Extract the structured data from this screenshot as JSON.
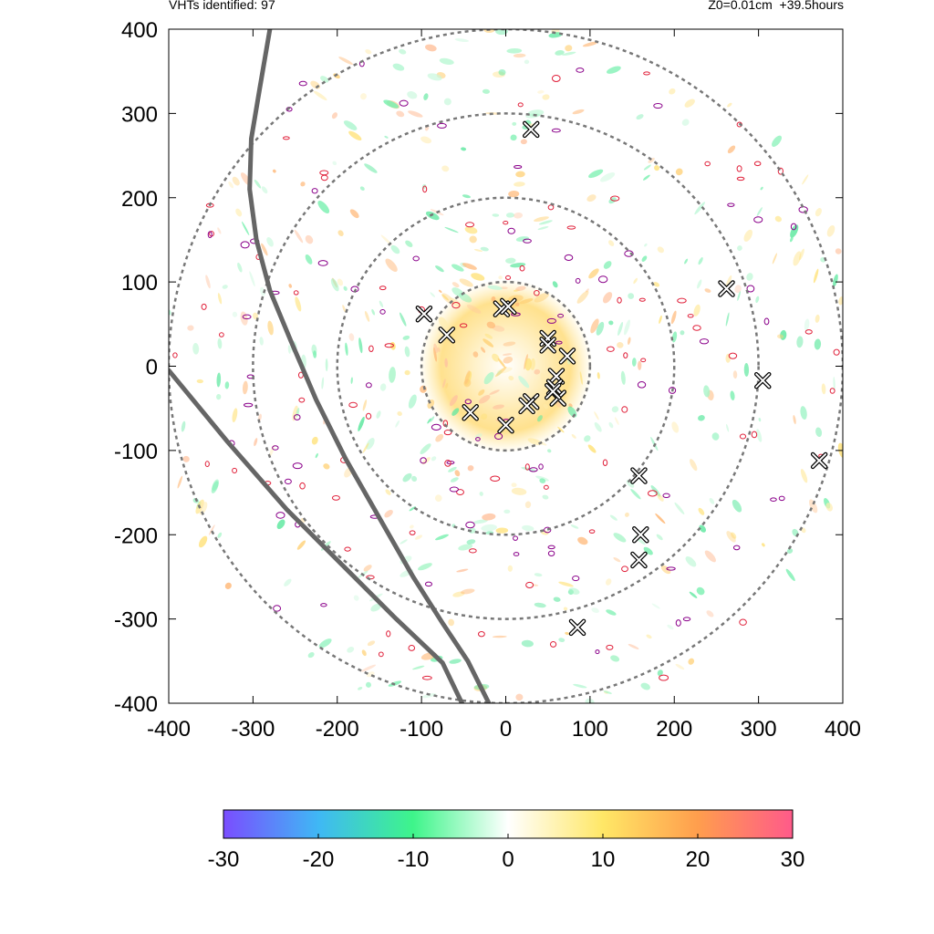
{
  "header": {
    "left_text": "VHTs identified: 97",
    "right_text": "Z0=0.01cm  +39.5hours"
  },
  "chart_data": {
    "type": "scatter",
    "title": "",
    "xlabel": "",
    "ylabel": "",
    "xlim": [
      -400,
      400
    ],
    "ylim": [
      -400,
      400
    ],
    "x_ticks": [
      "-400",
      "-300",
      "-200",
      "-100",
      "0",
      "100",
      "200",
      "300",
      "400"
    ],
    "y_ticks": [
      "400",
      "300",
      "200",
      "100",
      "0",
      "-100",
      "-200",
      "-300",
      "-400"
    ],
    "grid": false,
    "range_rings": [
      100,
      200,
      300,
      400
    ],
    "ring_color": "#777777",
    "track_color": "#666666",
    "tracks": [
      {
        "points": [
          [
            -280,
            400
          ],
          [
            -292,
            330
          ],
          [
            -302,
            270
          ],
          [
            -304,
            210
          ],
          [
            -296,
            150
          ],
          [
            -280,
            90
          ],
          [
            -255,
            30
          ],
          [
            -225,
            -40
          ],
          [
            -190,
            -110
          ],
          [
            -150,
            -180
          ],
          [
            -110,
            -250
          ],
          [
            -75,
            -305
          ],
          [
            -45,
            -350
          ],
          [
            -20,
            -400
          ]
        ]
      },
      {
        "points": [
          [
            -400,
            -5
          ],
          [
            -330,
            -90
          ],
          [
            -260,
            -170
          ],
          [
            -195,
            -235
          ],
          [
            -130,
            -300
          ],
          [
            -75,
            -352
          ],
          [
            -52,
            -400
          ]
        ]
      }
    ],
    "vht_markers": [
      [
        30,
        281
      ],
      [
        -97,
        62
      ],
      [
        -70,
        37
      ],
      [
        -5,
        68
      ],
      [
        3,
        71
      ],
      [
        50,
        33
      ],
      [
        50,
        25
      ],
      [
        73,
        12
      ],
      [
        60,
        -12
      ],
      [
        58,
        -25
      ],
      [
        62,
        -38
      ],
      [
        56,
        -30
      ],
      [
        30,
        -42
      ],
      [
        25,
        -47
      ],
      [
        -42,
        -55
      ],
      [
        0,
        -70
      ],
      [
        262,
        92
      ],
      [
        305,
        -17
      ],
      [
        158,
        -130
      ],
      [
        372,
        -112
      ],
      [
        160,
        -200
      ],
      [
        158,
        -230
      ],
      [
        85,
        -310
      ]
    ],
    "colorbar": {
      "min": -30,
      "max": 30,
      "ticks": [
        "-30",
        "-20",
        "-10",
        "0",
        "10",
        "20",
        "30"
      ],
      "colors": [
        "#7a4dff",
        "#3fb8f5",
        "#3ef58a",
        "#ffffff",
        "#ffe766",
        "#ff9e4d",
        "#ff5a8a"
      ]
    }
  }
}
